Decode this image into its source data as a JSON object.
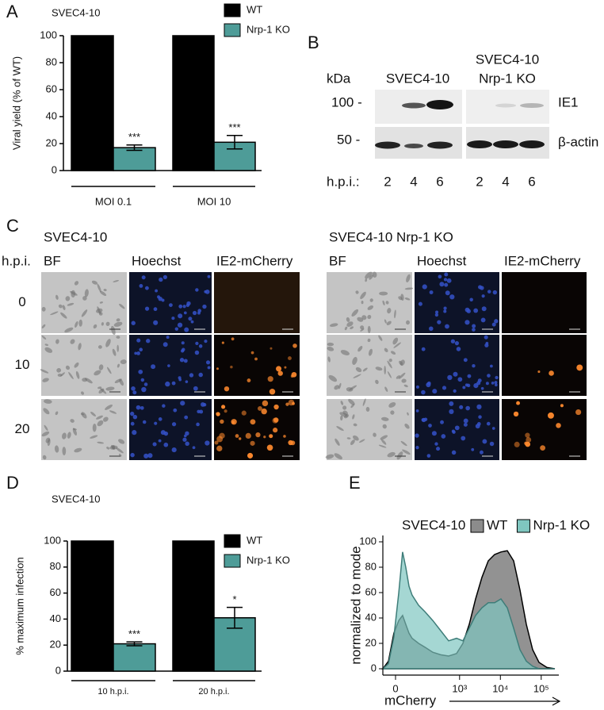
{
  "panel_labels": [
    "A",
    "B",
    "C",
    "D",
    "E"
  ],
  "chart_data": [
    {
      "type": "bar",
      "title": "SVEC4-10",
      "y_label": "Viral yield (% of WT)",
      "categories": [
        "MOI 0.1",
        "MOI 10"
      ],
      "series": [
        {
          "name": "WT",
          "color": "#000000",
          "values": [
            100,
            100
          ]
        },
        {
          "name": "Nrp-1 KO",
          "color": "#4e9c98",
          "values": [
            17,
            21
          ],
          "errors": [
            2,
            5
          ],
          "significance": [
            "***",
            "***"
          ]
        }
      ],
      "ylim": [
        0,
        100
      ],
      "yticks": [
        0,
        20,
        40,
        60,
        80,
        100
      ],
      "legend": "upper right"
    },
    {
      "type": "bar",
      "title": "SVEC4-10",
      "y_label": "% maximum infection",
      "categories": [
        "10 h.p.i.",
        "20 h.p.i."
      ],
      "series": [
        {
          "name": "WT",
          "color": "#000000",
          "values": [
            100,
            100
          ]
        },
        {
          "name": "Nrp-1 KO",
          "color": "#4e9c98",
          "values": [
            21,
            41
          ],
          "errors": [
            1.5,
            8
          ],
          "significance": [
            "***",
            "*"
          ]
        }
      ],
      "ylim": [
        0,
        100
      ],
      "yticks": [
        0,
        20,
        40,
        60,
        80,
        100
      ],
      "legend": "upper right"
    },
    {
      "type": "area",
      "title": "SVEC4-10",
      "x_label": "mCherry",
      "y_label": "normalized to mode",
      "xscale": "biexponential",
      "x": [
        -42,
        -22,
        -5,
        10,
        22,
        33,
        45,
        58,
        92,
        136,
        218,
        343,
        539,
        844,
        1207,
        1727,
        2468,
        3532,
        5049,
        7220,
        10314,
        14742,
        21114,
        30186,
        43200,
        61722,
        88290,
        138078,
        216000
      ],
      "series": [
        {
          "name": "WT",
          "color": "#8c8c8c",
          "values": [
            0,
            6,
            28,
            38,
            42,
            35,
            28,
            24,
            20,
            17,
            13,
            11,
            10,
            12,
            20,
            35,
            55,
            72,
            85,
            90,
            92,
            93,
            85,
            62,
            35,
            15,
            5,
            1,
            0
          ]
        },
        {
          "name": "Nrp-1 KO",
          "color": "#7fc6c0",
          "values": [
            0,
            4,
            25,
            60,
            92,
            80,
            65,
            58,
            50,
            45,
            38,
            30,
            22,
            24,
            22,
            32,
            42,
            48,
            52,
            52,
            55,
            48,
            32,
            15,
            6,
            2,
            0,
            0,
            0
          ]
        }
      ],
      "xlim": [
        -42,
        270000
      ],
      "xticks": [
        0,
        {
          "value": 1000,
          "label": "10³"
        },
        {
          "value": 10000,
          "label": "10⁴"
        },
        {
          "value": 100000,
          "label": "10⁵"
        }
      ],
      "ylim": [
        -5,
        105
      ],
      "yticks": [
        0,
        20,
        40,
        60,
        80,
        100
      ],
      "legend": "top"
    }
  ],
  "blot": {
    "unit": "kDa",
    "group_1": "SVEC4-10",
    "group_2": [
      "SVEC4-10",
      "Nrp-1 KO"
    ],
    "markers": [
      "100 -",
      "50 -"
    ],
    "bands": [
      "IE1",
      "β-actin"
    ],
    "lane_label": "h.p.i.:",
    "lanes": [
      "2",
      "4",
      "6",
      "2",
      "4",
      "6"
    ]
  },
  "microscopy": {
    "titles": [
      "SVEC4-10",
      "SVEC4-10 Nrp-1 KO"
    ],
    "row_header": "h.p.i.",
    "columns": [
      "BF",
      "Hoechst",
      "IE2-mCherry"
    ],
    "rows": [
      "0",
      "10",
      "20"
    ]
  }
}
